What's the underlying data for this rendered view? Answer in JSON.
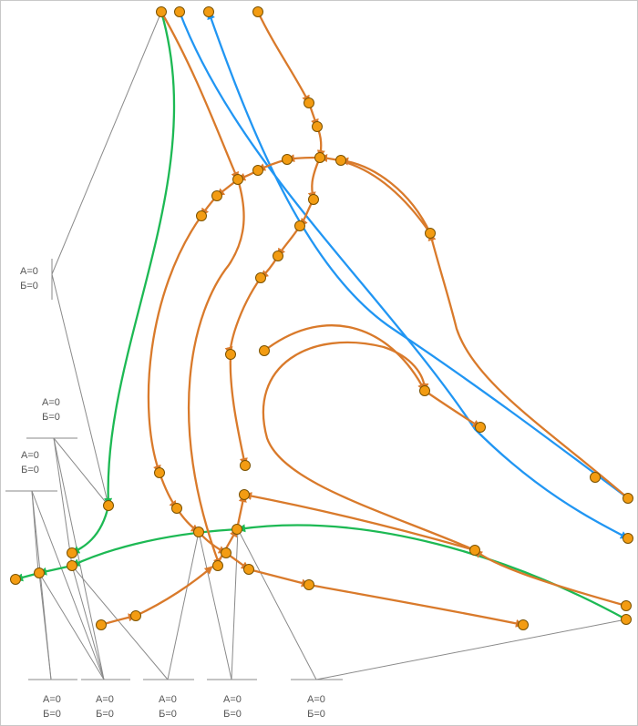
{
  "colors": {
    "orange_curve": "#d97a2b",
    "blue_curve": "#2196f3",
    "green_curve": "#1db954",
    "node_fill": "#f39c12",
    "node_stroke": "#7a5200",
    "connector": "#8a8a8a"
  },
  "labels": [
    {
      "a": "А=0",
      "b": "Б=0"
    },
    {
      "a": "А=0",
      "b": "Б=0"
    },
    {
      "a": "А=0",
      "b": "Б=0"
    },
    {
      "a": "А=0",
      "b": "Б=0"
    },
    {
      "a": "А=0",
      "b": "Б=0"
    },
    {
      "a": "А=0",
      "b": "Б=0"
    },
    {
      "a": "А=0",
      "b": "Б=0"
    },
    {
      "a": "А=0",
      "b": "Б=0"
    }
  ]
}
